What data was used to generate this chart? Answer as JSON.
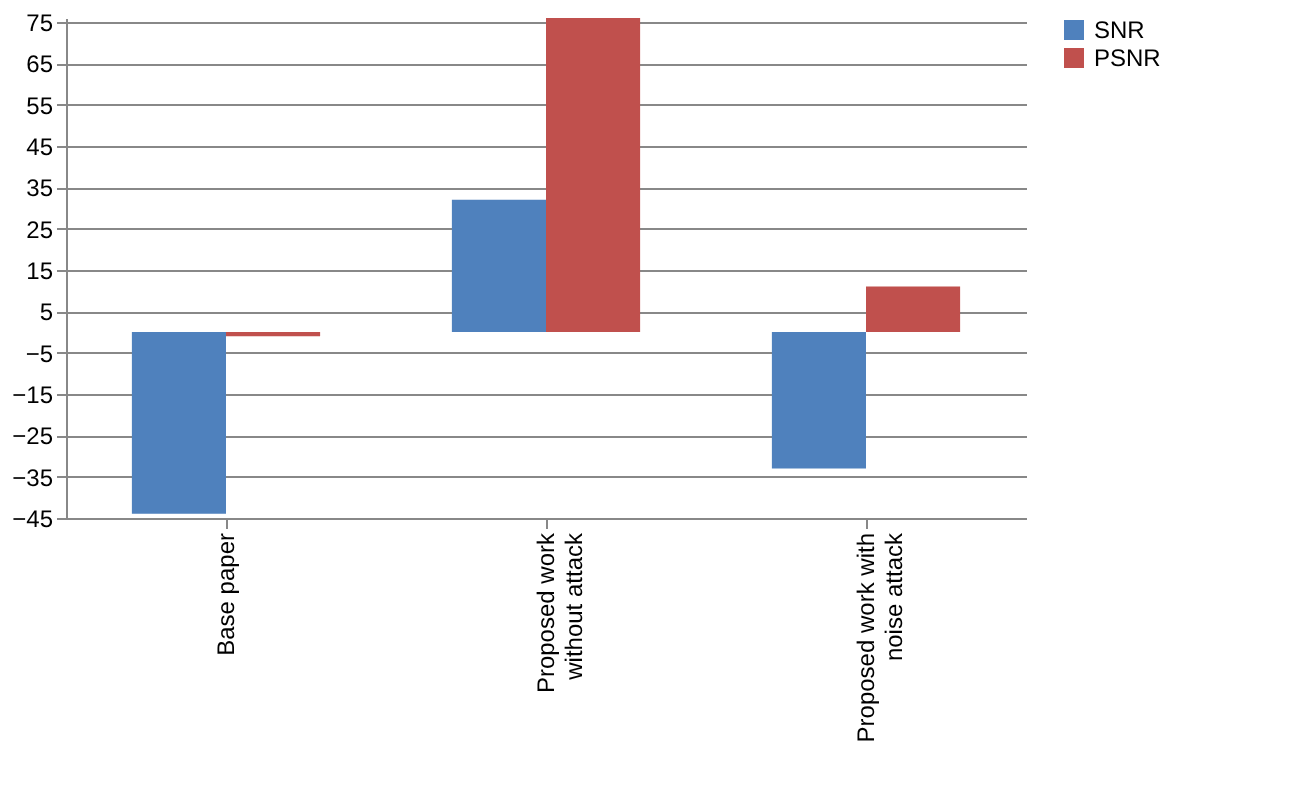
{
  "chart_data": {
    "type": "bar",
    "categories": [
      "Base paper",
      "Proposed work without attack",
      "Proposed work with noise attack"
    ],
    "series": [
      {
        "name": "SNR",
        "color": "#4f81bd",
        "values": [
          -44,
          32,
          -33
        ]
      },
      {
        "name": "PSNR",
        "color": "#c0504d",
        "values": [
          -1,
          76,
          11
        ]
      }
    ],
    "ylim": [
      -45,
      76
    ],
    "yticks": [
      -45,
      -35,
      -25,
      -15,
      -5,
      5,
      15,
      25,
      35,
      45,
      55,
      65,
      75
    ],
    "grid": "y",
    "legend": "right"
  }
}
